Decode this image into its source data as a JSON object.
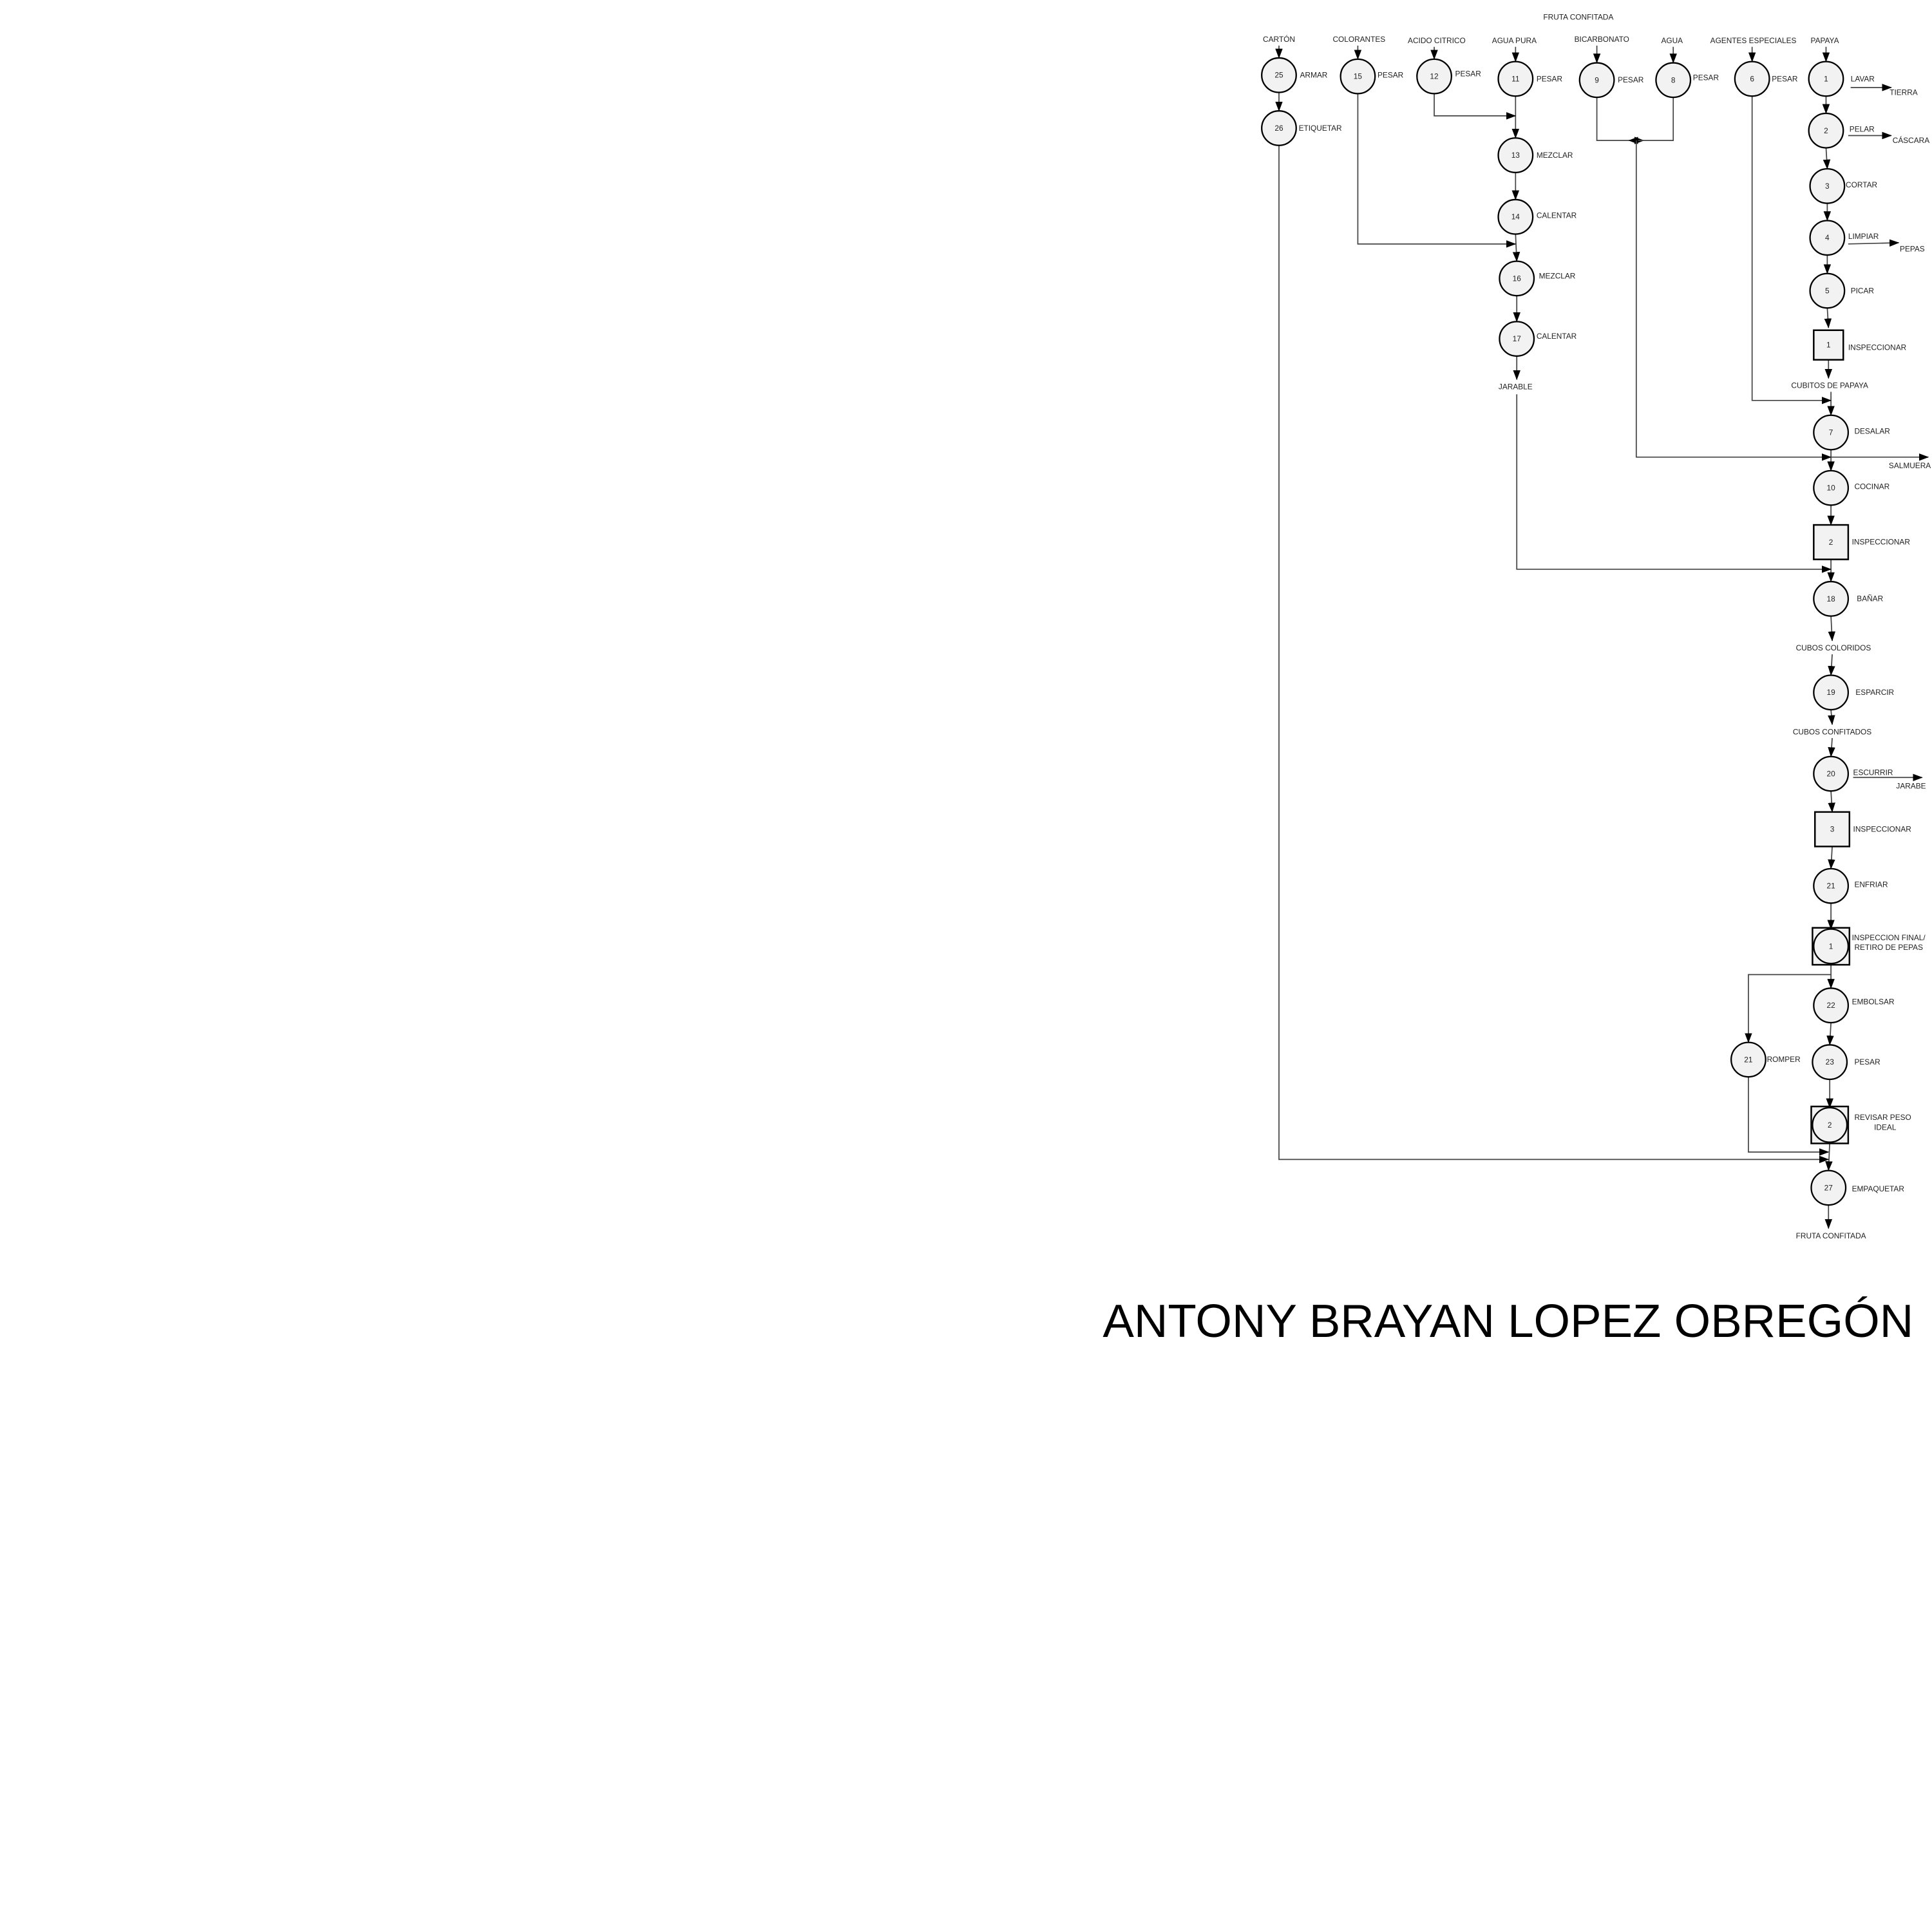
{
  "title": "FRUTA CONFITADA",
  "author": "ANTONY BRAYAN LOPEZ OBREGÓN",
  "inputs": [
    "CARTÓN",
    "COLORANTES",
    "ACIDO CITRICO",
    "AGUA PURA",
    "BICARBONATO",
    "AGUA",
    "AGENTES ESPECIALES",
    "PAPAYA"
  ],
  "outputs": [
    "TIERRA",
    "CÁSCARA",
    "PEPAS",
    "SALMUERA",
    "JARABE"
  ],
  "intermediates": [
    "CUBITOS DE PAPAYA",
    "JARABLE",
    "CUBOS COLORIDOS",
    "CUBOS CONFITADOS",
    "FRUTA CONFITADA"
  ],
  "nodes": [
    {
      "num": "25",
      "label": "ARMAR",
      "type": "operation"
    },
    {
      "num": "26",
      "label": "ETIQUETAR",
      "type": "operation"
    },
    {
      "num": "15",
      "label": "PESAR",
      "type": "operation"
    },
    {
      "num": "12",
      "label": "PESAR",
      "type": "operation"
    },
    {
      "num": "11",
      "label": "PESAR",
      "type": "operation"
    },
    {
      "num": "13",
      "label": "MEZCLAR",
      "type": "operation"
    },
    {
      "num": "14",
      "label": "CALENTAR",
      "type": "operation"
    },
    {
      "num": "16",
      "label": "MEZCLAR",
      "type": "operation"
    },
    {
      "num": "17",
      "label": "CALENTAR",
      "type": "operation"
    },
    {
      "num": "9",
      "label": "PESAR",
      "type": "operation"
    },
    {
      "num": "8",
      "label": "PESAR",
      "type": "operation"
    },
    {
      "num": "6",
      "label": "PESAR",
      "type": "operation"
    },
    {
      "num": "1",
      "label": "LAVAR",
      "type": "operation"
    },
    {
      "num": "2",
      "label": "PELAR",
      "type": "operation"
    },
    {
      "num": "3",
      "label": "CORTAR",
      "type": "operation"
    },
    {
      "num": "4",
      "label": "LIMPIAR",
      "type": "operation"
    },
    {
      "num": "5",
      "label": "PICAR",
      "type": "operation"
    },
    {
      "num": "1",
      "label": "INSPECCIONAR",
      "type": "inspection"
    },
    {
      "num": "7",
      "label": "DESALAR",
      "type": "operation"
    },
    {
      "num": "10",
      "label": "COCINAR",
      "type": "operation"
    },
    {
      "num": "2",
      "label": "INSPECCIONAR",
      "type": "inspection"
    },
    {
      "num": "18",
      "label": "BAÑAR",
      "type": "operation"
    },
    {
      "num": "19",
      "label": "ESPARCIR",
      "type": "operation"
    },
    {
      "num": "20",
      "label": "ESCURRIR",
      "type": "operation"
    },
    {
      "num": "3",
      "label": "INSPECCIONAR",
      "type": "inspection"
    },
    {
      "num": "21",
      "label": "ENFRIAR",
      "type": "operation"
    },
    {
      "num": "1",
      "label": "INSPECCION FINAL/|RETIRO DE PEPAS",
      "type": "combined"
    },
    {
      "num": "22",
      "label": "EMBOLSAR",
      "type": "operation"
    },
    {
      "num": "23",
      "label": "PESAR",
      "type": "operation"
    },
    {
      "num": "2",
      "label": "REVISAR PESO|IDEAL",
      "type": "combined"
    },
    {
      "num": "27",
      "label": "EMPAQUETAR",
      "type": "operation"
    },
    {
      "num": "21",
      "label": "ROMPER",
      "type": "operation"
    }
  ]
}
